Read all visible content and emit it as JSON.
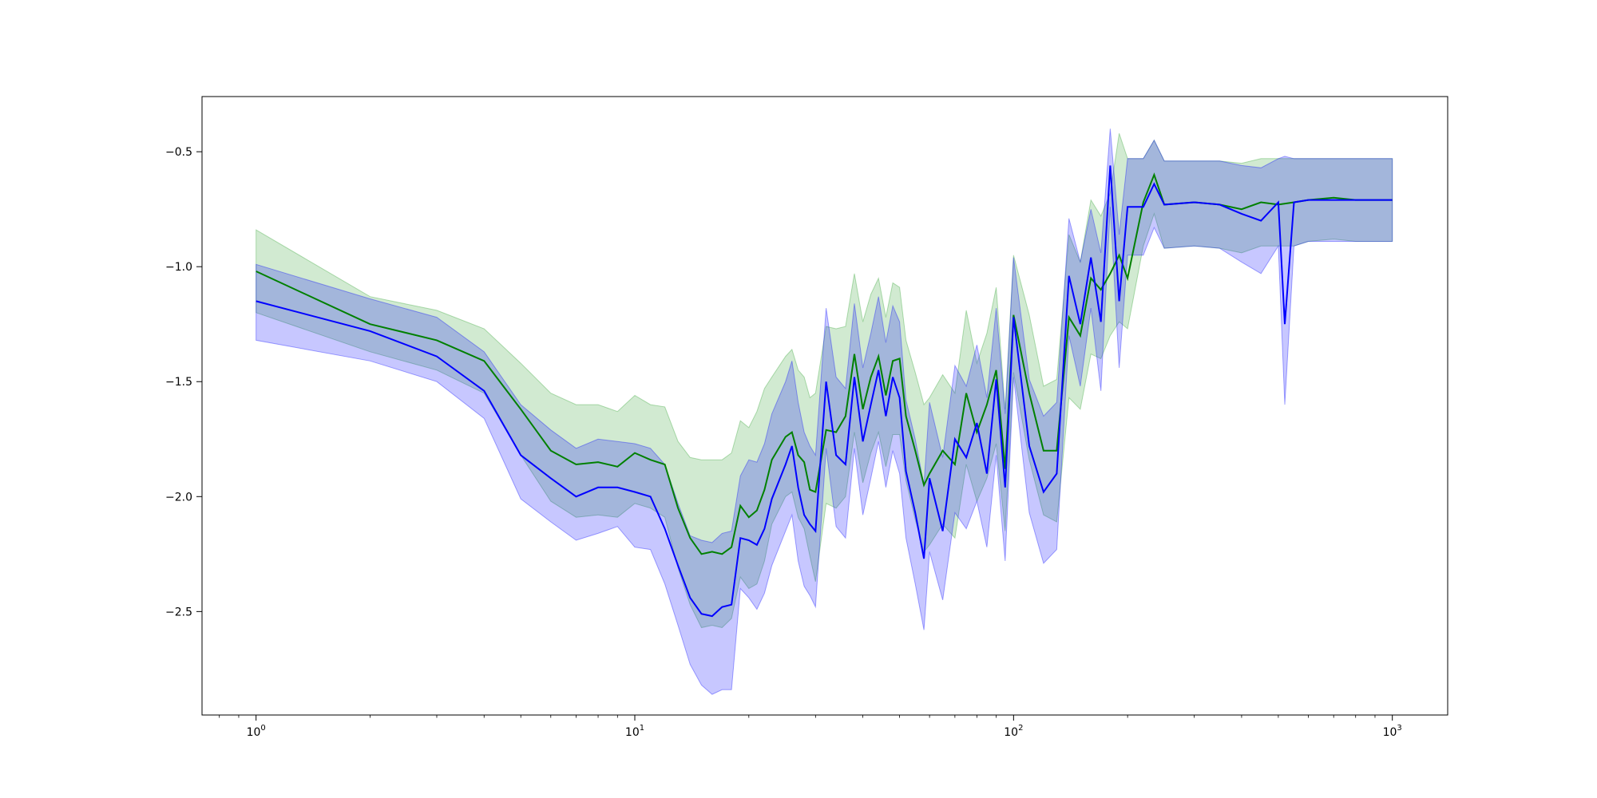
{
  "chart_data": {
    "type": "line",
    "title": "",
    "xlabel": "",
    "ylabel": "",
    "x_scale": "log",
    "xlim": [
      0.72,
      1400
    ],
    "ylim": [
      -2.95,
      -0.26
    ],
    "grid": false,
    "legend": "none",
    "x_ticks": [
      {
        "value": 1,
        "base": "10",
        "exp": "0"
      },
      {
        "value": 10,
        "base": "10",
        "exp": "1"
      },
      {
        "value": 100,
        "base": "10",
        "exp": "2"
      },
      {
        "value": 1000,
        "base": "10",
        "exp": "3"
      }
    ],
    "y_ticks": [
      {
        "value": -0.5,
        "label": "−0.5"
      },
      {
        "value": -1.0,
        "label": "−1.0"
      },
      {
        "value": -1.5,
        "label": "−1.5"
      },
      {
        "value": -2.0,
        "label": "−2.0"
      },
      {
        "value": -2.5,
        "label": "−2.5"
      }
    ],
    "series": [
      {
        "color": "#008000",
        "band_color": "#2ca02c",
        "x": [
          1,
          2,
          3,
          4,
          5,
          6,
          7,
          8,
          9,
          10,
          11,
          12,
          13,
          14,
          15,
          16,
          17,
          18,
          19,
          20,
          21,
          22,
          23,
          25,
          26,
          27,
          28,
          29,
          30,
          32,
          34,
          36,
          38,
          40,
          42,
          44,
          46,
          48,
          50,
          52,
          55,
          58,
          60,
          65,
          70,
          75,
          80,
          85,
          90,
          95,
          100,
          110,
          120,
          130,
          140,
          150,
          160,
          170,
          180,
          190,
          200,
          220,
          235,
          250,
          300,
          350,
          400,
          450,
          500,
          550,
          600,
          700,
          800,
          1000
        ],
        "mean": [
          -1.02,
          -1.25,
          -1.32,
          -1.41,
          -1.62,
          -1.8,
          -1.86,
          -1.85,
          -1.87,
          -1.81,
          -1.84,
          -1.86,
          -2.05,
          -2.18,
          -2.25,
          -2.24,
          -2.25,
          -2.22,
          -2.04,
          -2.09,
          -2.06,
          -1.97,
          -1.84,
          -1.74,
          -1.72,
          -1.82,
          -1.85,
          -1.97,
          -1.98,
          -1.71,
          -1.72,
          -1.65,
          -1.38,
          -1.62,
          -1.48,
          -1.39,
          -1.56,
          -1.41,
          -1.4,
          -1.65,
          -1.8,
          -1.95,
          -1.9,
          -1.8,
          -1.86,
          -1.55,
          -1.72,
          -1.6,
          -1.45,
          -1.88,
          -1.21,
          -1.55,
          -1.8,
          -1.8,
          -1.22,
          -1.3,
          -1.05,
          -1.1,
          -1.03,
          -0.95,
          -1.05,
          -0.72,
          -0.6,
          -0.73,
          -0.72,
          -0.73,
          -0.75,
          -0.72,
          -0.73,
          -0.72,
          -0.71,
          -0.7,
          -0.71,
          -0.71
        ],
        "upper": [
          -0.84,
          -1.13,
          -1.19,
          -1.27,
          -1.42,
          -1.55,
          -1.6,
          -1.6,
          -1.63,
          -1.56,
          -1.6,
          -1.61,
          -1.76,
          -1.83,
          -1.84,
          -1.84,
          -1.84,
          -1.81,
          -1.67,
          -1.7,
          -1.63,
          -1.53,
          -1.48,
          -1.39,
          -1.36,
          -1.45,
          -1.48,
          -1.57,
          -1.55,
          -1.26,
          -1.27,
          -1.26,
          -1.03,
          -1.24,
          -1.12,
          -1.05,
          -1.22,
          -1.07,
          -1.09,
          -1.32,
          -1.46,
          -1.6,
          -1.57,
          -1.47,
          -1.55,
          -1.19,
          -1.42,
          -1.29,
          -1.09,
          -1.62,
          -0.95,
          -1.21,
          -1.52,
          -1.49,
          -0.86,
          -0.98,
          -0.71,
          -0.78,
          -0.68,
          -0.42,
          -0.53,
          -0.53,
          -0.45,
          -0.54,
          -0.54,
          -0.54,
          -0.55,
          -0.53,
          -0.53,
          -0.53,
          -0.53,
          -0.53,
          -0.53,
          -0.53
        ],
        "lower": [
          -1.2,
          -1.37,
          -1.45,
          -1.55,
          -1.82,
          -2.02,
          -2.09,
          -2.08,
          -2.09,
          -2.03,
          -2.05,
          -2.09,
          -2.31,
          -2.47,
          -2.57,
          -2.56,
          -2.57,
          -2.53,
          -2.35,
          -2.4,
          -2.38,
          -2.28,
          -2.12,
          -2.0,
          -1.98,
          -2.09,
          -2.14,
          -2.26,
          -2.37,
          -2.03,
          -2.05,
          -2.0,
          -1.72,
          -1.94,
          -1.81,
          -1.72,
          -1.87,
          -1.73,
          -1.73,
          -1.93,
          -2.1,
          -2.24,
          -2.21,
          -2.12,
          -2.18,
          -1.86,
          -2.02,
          -1.92,
          -1.77,
          -2.15,
          -1.46,
          -1.84,
          -2.08,
          -2.11,
          -1.57,
          -1.62,
          -1.38,
          -1.4,
          -1.3,
          -1.24,
          -1.27,
          -0.91,
          -0.77,
          -0.92,
          -0.91,
          -0.92,
          -0.94,
          -0.91,
          -0.91,
          -0.91,
          -0.89,
          -0.88,
          -0.89,
          -0.89
        ]
      },
      {
        "color": "#0000ff",
        "band_color": "#0000ff",
        "x": [
          1,
          2,
          3,
          4,
          5,
          6,
          7,
          8,
          9,
          10,
          11,
          12,
          13,
          14,
          15,
          16,
          17,
          18,
          19,
          20,
          21,
          22,
          23,
          25,
          26,
          27,
          28,
          29,
          30,
          32,
          34,
          36,
          38,
          40,
          42,
          44,
          46,
          48,
          50,
          52,
          55,
          58,
          60,
          65,
          70,
          75,
          80,
          85,
          90,
          95,
          100,
          110,
          120,
          130,
          140,
          150,
          160,
          170,
          180,
          190,
          200,
          220,
          235,
          250,
          300,
          350,
          400,
          450,
          500,
          520,
          550,
          600,
          700,
          800,
          1000
        ],
        "mean": [
          -1.15,
          -1.28,
          -1.39,
          -1.54,
          -1.82,
          -1.92,
          -2.0,
          -1.96,
          -1.96,
          -1.98,
          -2.0,
          -2.14,
          -2.3,
          -2.44,
          -2.51,
          -2.52,
          -2.48,
          -2.47,
          -2.18,
          -2.19,
          -2.21,
          -2.14,
          -2.01,
          -1.86,
          -1.78,
          -1.96,
          -2.08,
          -2.12,
          -2.15,
          -1.5,
          -1.82,
          -1.86,
          -1.48,
          -1.76,
          -1.6,
          -1.45,
          -1.65,
          -1.48,
          -1.57,
          -1.89,
          -2.07,
          -2.27,
          -1.92,
          -2.15,
          -1.75,
          -1.83,
          -1.68,
          -1.9,
          -1.49,
          -1.96,
          -1.22,
          -1.78,
          -1.98,
          -1.9,
          -1.04,
          -1.25,
          -0.96,
          -1.24,
          -0.56,
          -1.15,
          -0.74,
          -0.74,
          -0.64,
          -0.73,
          -0.72,
          -0.73,
          -0.77,
          -0.8,
          -0.72,
          -1.25,
          -0.72,
          -0.71,
          -0.71,
          -0.71,
          -0.71
        ],
        "upper": [
          -0.99,
          -1.14,
          -1.22,
          -1.37,
          -1.6,
          -1.71,
          -1.79,
          -1.75,
          -1.76,
          -1.77,
          -1.79,
          -1.86,
          -2.03,
          -2.17,
          -2.19,
          -2.2,
          -2.16,
          -2.15,
          -1.91,
          -1.84,
          -1.85,
          -1.77,
          -1.64,
          -1.5,
          -1.41,
          -1.59,
          -1.72,
          -1.78,
          -1.82,
          -1.18,
          -1.48,
          -1.53,
          -1.16,
          -1.44,
          -1.29,
          -1.13,
          -1.33,
          -1.17,
          -1.24,
          -1.58,
          -1.75,
          -1.95,
          -1.59,
          -1.83,
          -1.43,
          -1.52,
          -1.34,
          -1.57,
          -1.18,
          -1.64,
          -0.96,
          -1.49,
          -1.65,
          -1.59,
          -0.79,
          -0.98,
          -0.75,
          -0.94,
          -0.4,
          -0.86,
          -0.53,
          -0.53,
          -0.45,
          -0.54,
          -0.54,
          -0.54,
          -0.56,
          -0.57,
          -0.53,
          -0.52,
          -0.53,
          -0.53,
          -0.53,
          -0.53,
          -0.53
        ],
        "lower": [
          -1.32,
          -1.41,
          -1.5,
          -1.66,
          -2.01,
          -2.11,
          -2.19,
          -2.16,
          -2.13,
          -2.22,
          -2.23,
          -2.38,
          -2.56,
          -2.73,
          -2.82,
          -2.86,
          -2.84,
          -2.84,
          -2.4,
          -2.44,
          -2.49,
          -2.42,
          -2.3,
          -2.15,
          -2.08,
          -2.28,
          -2.39,
          -2.43,
          -2.48,
          -1.79,
          -2.13,
          -2.18,
          -1.79,
          -2.08,
          -1.92,
          -1.76,
          -1.96,
          -1.8,
          -1.9,
          -2.18,
          -2.38,
          -2.58,
          -2.24,
          -2.45,
          -2.07,
          -2.14,
          -2.02,
          -2.22,
          -1.82,
          -2.28,
          -1.48,
          -2.07,
          -2.29,
          -2.23,
          -1.3,
          -1.52,
          -1.18,
          -1.54,
          -0.74,
          -1.44,
          -0.95,
          -0.95,
          -0.83,
          -0.92,
          -0.91,
          -0.92,
          -0.98,
          -1.03,
          -0.91,
          -1.6,
          -0.91,
          -0.89,
          -0.89,
          -0.89,
          -0.89
        ]
      }
    ]
  }
}
